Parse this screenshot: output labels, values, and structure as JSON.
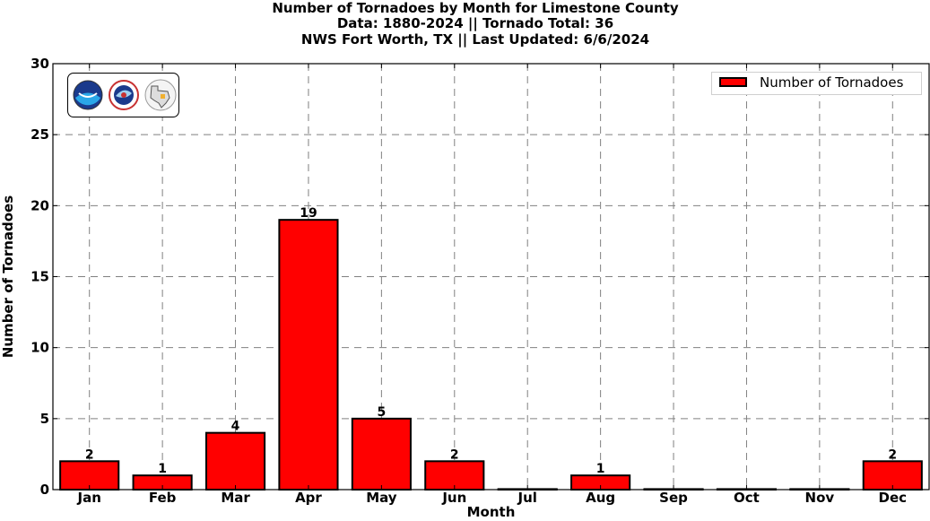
{
  "titles": {
    "line1": "Number of Tornadoes by Month for Limestone County",
    "line2": "Data: 1880-2024 || Tornado Total: 36",
    "line3": "NWS Fort Worth, TX || Last Updated: 6/6/2024"
  },
  "legend": {
    "label": "Number of Tornadoes"
  },
  "logos": [
    "noaa-logo",
    "nws-logo",
    "texas-map-logo"
  ],
  "colors": {
    "bar": "#ff0000",
    "bar_edge": "#000000",
    "grid": "#808080"
  },
  "chart_data": {
    "type": "bar",
    "title": "Number of Tornadoes by Month for Limestone County",
    "xlabel": "Month",
    "ylabel": "Number of Tornadoes",
    "categories": [
      "Jan",
      "Feb",
      "Mar",
      "Apr",
      "May",
      "Jun",
      "Jul",
      "Aug",
      "Sep",
      "Oct",
      "Nov",
      "Dec"
    ],
    "series": [
      {
        "name": "Number of Tornadoes",
        "values": [
          2,
          1,
          4,
          19,
          5,
          2,
          0,
          1,
          0,
          0,
          0,
          2
        ]
      }
    ],
    "data_labels": [
      "2",
      "1",
      "4",
      "19",
      "5",
      "2",
      "",
      "1",
      "",
      "",
      "",
      "2"
    ],
    "ylim": [
      0,
      30
    ],
    "yticks": [
      0,
      5,
      10,
      15,
      20,
      25,
      30
    ],
    "grid": true,
    "grid_style": "dashed",
    "legend_position": "top-right"
  }
}
